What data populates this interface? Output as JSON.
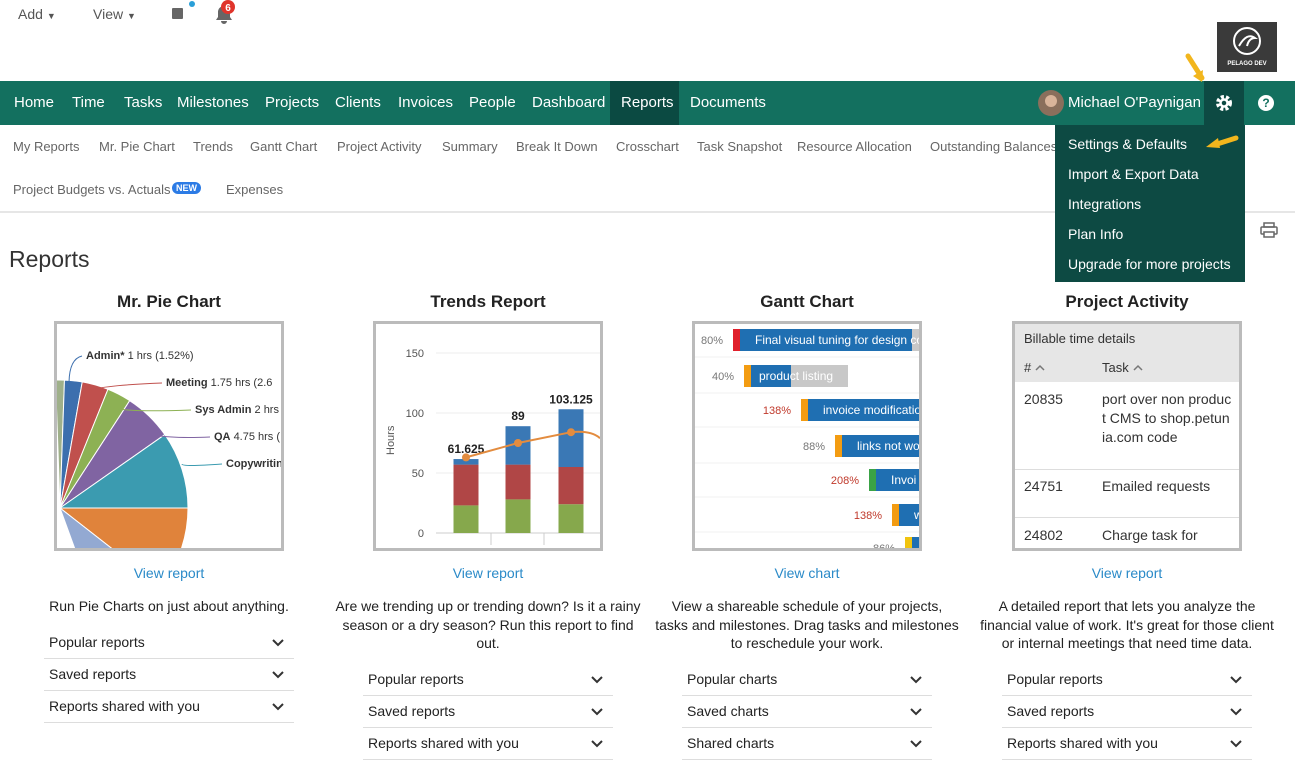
{
  "top_bar": {
    "add": "Add",
    "view": "View",
    "notifications": "6"
  },
  "logo": "PELAGO DEV",
  "nav": {
    "items": [
      "Home",
      "Time",
      "Tasks",
      "Milestones",
      "Projects",
      "Clients",
      "Invoices",
      "People",
      "Dashboard",
      "Reports",
      "Documents"
    ],
    "active_index": 9,
    "user": "Michael O'Paynigan"
  },
  "settings_menu": [
    "Settings & Defaults",
    "Import & Export Data",
    "Integrations",
    "Plan Info",
    "Upgrade for more projects"
  ],
  "subnav": {
    "row1": [
      "My Reports",
      "Mr. Pie Chart",
      "Trends",
      "Gantt Chart",
      "Project Activity",
      "Summary",
      "Break It Down",
      "Crosschart",
      "Task Snapshot",
      "Resource Allocation",
      "Outstanding Balances"
    ],
    "row2": [
      "Project Budgets vs. Actuals",
      "Expenses"
    ],
    "badge": "NEW"
  },
  "page_title": "Reports",
  "cards": [
    {
      "title": "Mr. Pie Chart",
      "link": "View report",
      "description": "Run Pie Charts on just about anything.",
      "menu": [
        "Popular reports",
        "Saved reports",
        "Reports shared with you"
      ],
      "pie_labels": [
        {
          "name": "Admin*",
          "detail": "1 hrs (1.52%)"
        },
        {
          "name": "Meeting",
          "detail": "1.75 hrs (2.6"
        },
        {
          "name": "Sys Admin",
          "detail": "2 hrs"
        },
        {
          "name": "QA",
          "detail": "4.75 hrs ("
        },
        {
          "name": "Copywritin"
        }
      ]
    },
    {
      "title": "Trends Report",
      "link": "View report",
      "description": "Are we trending up or trending down? Is it a rainy season or a dry season? Run this report to find out.",
      "menu": [
        "Popular reports",
        "Saved reports",
        "Reports shared with you"
      ],
      "trends": {
        "type": "bar",
        "y_label": "Hours",
        "ylim": [
          0,
          150
        ],
        "yticks": [
          0,
          50,
          100,
          150
        ],
        "stacks": [
          {
            "color": "#86a84c",
            "values": [
              23,
              28,
              24
            ]
          },
          {
            "color": "#b04646",
            "values": [
              34,
              29,
              31
            ]
          },
          {
            "color": "#3a78b5",
            "values": [
              4.625,
              32,
              48.125
            ]
          }
        ],
        "totals": [
          61.625,
          89,
          103.125
        ],
        "trend_line": {
          "color": "#e38c3f",
          "values": [
            63,
            75,
            84
          ]
        }
      }
    },
    {
      "title": "Gantt Chart",
      "link": "View chart",
      "description": "View a shareable schedule of your projects, tasks and milestones. Drag tasks and milestones to reschedule your work.",
      "menu": [
        "Popular charts",
        "Saved charts",
        "Shared charts"
      ],
      "gantt": [
        {
          "percent": "80%",
          "task": "Final visual tuning for design co",
          "color": "#e0202c"
        },
        {
          "percent": "40%",
          "task": "product listing",
          "color": "#f39c12"
        },
        {
          "percent": "138%",
          "task": "invoice modificatio",
          "color": "#f39c12"
        },
        {
          "percent": "88%",
          "task": "links not wo",
          "color": "#f39c12"
        },
        {
          "percent": "208%",
          "task": "Invoi",
          "color": "#3aa346"
        },
        {
          "percent": "138%",
          "task": "w",
          "color": "#f39c12"
        },
        {
          "percent": "86%",
          "color": "#f1c40f"
        }
      ]
    },
    {
      "title": "Project Activity",
      "link": "View report",
      "description": "A detailed report that lets you analyze the financial value of work. It's great for those client or internal meetings that need time data.",
      "menu": [
        "Popular reports",
        "Saved reports",
        "Reports shared with you"
      ],
      "table": {
        "caption": "Billable time details",
        "columns": [
          "#",
          "Task"
        ],
        "rows": [
          [
            "20835",
            "port over non product CMS to shop.petunia.com code"
          ],
          [
            "24751",
            "Emailed requests"
          ],
          [
            "24802",
            "Charge task for"
          ]
        ]
      }
    }
  ]
}
